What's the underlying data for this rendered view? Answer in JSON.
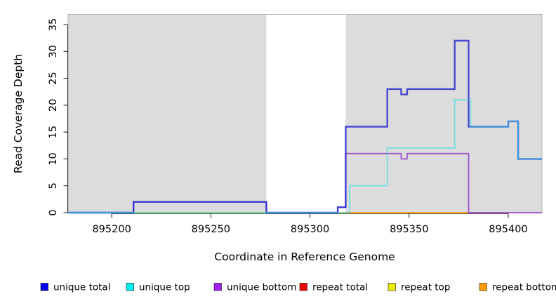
{
  "chart_data": {
    "type": "line",
    "subtype": "step",
    "title": "",
    "xlabel": "Coordinate in Reference Genome",
    "ylabel": "Read Coverage Depth",
    "xlim": [
      895178,
      895417
    ],
    "ylim": [
      0,
      36.9
    ],
    "x_ticks": [
      895200,
      895250,
      895300,
      895350,
      895400
    ],
    "y_ticks": [
      0,
      5,
      10,
      15,
      20,
      25,
      30,
      35
    ],
    "grid": false,
    "plot_background": "#ffffff",
    "shade_color": "#DCDCDC",
    "plot_border_color": "#B5B5B5",
    "axis_color": "#2A2A2A",
    "shaded_regions": [
      {
        "x_start": 895178,
        "x_end": 895278
      },
      {
        "x_start": 895318,
        "x_end": 895417
      }
    ],
    "series": [
      {
        "name": "repeat top",
        "legend_color": "#EDED00",
        "line_color": "#EDED00",
        "line_opacity": 1,
        "line_width": 1.5,
        "x_end": 895417,
        "points": [
          [
            895178,
            0
          ]
        ]
      },
      {
        "name": "repeat bottom",
        "legend_color": "#FF9900",
        "line_color": "#FF9E1B",
        "line_opacity": 1,
        "line_width": 1.8,
        "x_end": 895380,
        "points": [
          [
            895318,
            0
          ]
        ]
      },
      {
        "name": "repeat total",
        "legend_color": "#EE0000",
        "line_color": "#C94E74",
        "line_opacity": 1,
        "line_width": 1.6,
        "x_end": 895417,
        "points": [
          [
            895380,
            0
          ]
        ]
      },
      {
        "name": "unique bottom",
        "legend_color": "#A020F0",
        "line_color": "#9D53CF",
        "line_opacity": 1,
        "line_width": 1.8,
        "x_end": 895417,
        "points": [
          [
            895178,
            0
          ],
          [
            895211,
            2
          ],
          [
            895278,
            0
          ],
          [
            895314,
            1
          ],
          [
            895318,
            11
          ],
          [
            895346,
            10
          ],
          [
            895349,
            11
          ],
          [
            895380,
            0
          ]
        ]
      },
      {
        "name": "unique total",
        "legend_color": "#0000EE",
        "line_color": "#2727CD",
        "line_opacity": 0.82,
        "line_width": 2.4,
        "x_end": 895417,
        "points": [
          [
            895178,
            0
          ],
          [
            895211,
            2
          ],
          [
            895278,
            0
          ],
          [
            895314,
            1
          ],
          [
            895318,
            16
          ],
          [
            895339,
            23
          ],
          [
            895346,
            22
          ],
          [
            895349,
            23
          ],
          [
            895373,
            32
          ],
          [
            895380,
            16
          ],
          [
            895400,
            17
          ],
          [
            895405,
            10
          ]
        ]
      },
      {
        "name": "unique top",
        "legend_color": "#00EEEE",
        "line_color": "#29E2E6",
        "line_opacity": 0.55,
        "line_width": 1.9,
        "x_end": 895417,
        "points": [
          [
            895178,
            0
          ],
          [
            895320,
            5
          ],
          [
            895339,
            12
          ],
          [
            895373,
            21
          ],
          [
            895381,
            16
          ],
          [
            895400,
            17
          ],
          [
            895405,
            10
          ]
        ]
      }
    ],
    "legend": {
      "position": "bottom",
      "items": [
        "unique total",
        "unique top",
        "unique bottom",
        "repeat total",
        "repeat top",
        "repeat bottom"
      ]
    }
  }
}
